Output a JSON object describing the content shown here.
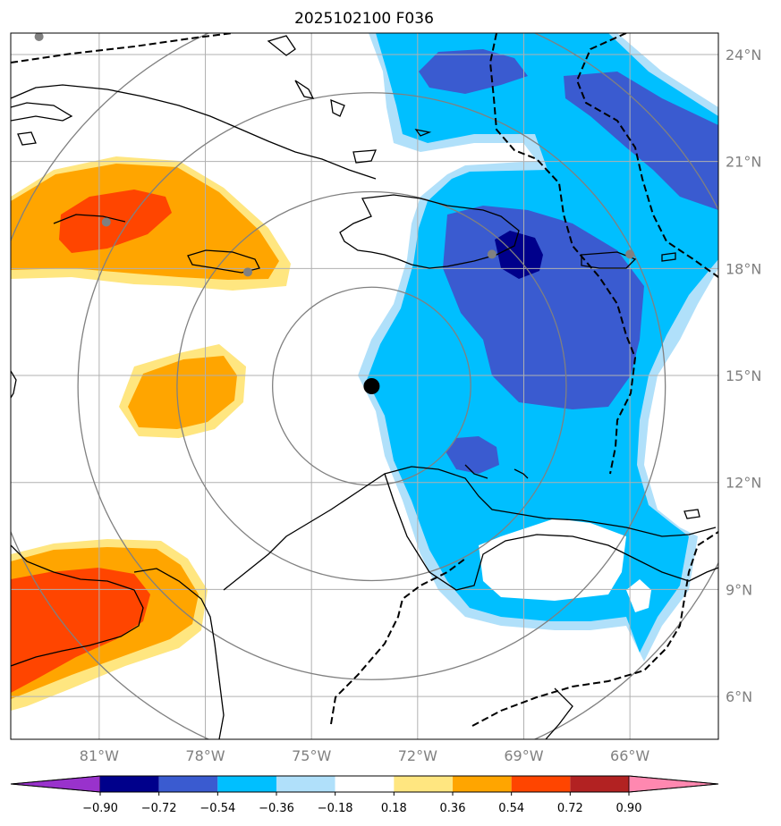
{
  "title": "2025102100 F036",
  "map": {
    "lon_range": [
      -83.5,
      -63.5
    ],
    "lat_range": [
      4.8,
      24.6
    ],
    "lat_ticks": [
      "24°N",
      "21°N",
      "18°N",
      "15°N",
      "12°N",
      "9°N",
      "6°N"
    ],
    "lat_tick_values": [
      24,
      21,
      18,
      15,
      12,
      9,
      6
    ],
    "lon_ticks": [
      "81°W",
      "78°W",
      "75°W",
      "72°W",
      "69°W",
      "66°W"
    ],
    "lon_tick_values": [
      -81,
      -78,
      -75,
      -72,
      -69,
      -66
    ],
    "grid": true,
    "center_marker": {
      "lon": -73.3,
      "lat": 14.7,
      "color": "#000000"
    },
    "station_points": [
      {
        "lon": -82.7,
        "lat": 24.5
      },
      {
        "lon": -80.8,
        "lat": 19.3
      },
      {
        "lon": -76.8,
        "lat": 17.9
      },
      {
        "lon": -69.9,
        "lat": 18.4
      },
      {
        "lon": -66.0,
        "lat": 18.4
      }
    ],
    "range_rings_deg": [
      2.8,
      5.5,
      8.3,
      11.0
    ]
  },
  "colorbar": {
    "labels": [
      "−0.90",
      "−0.72",
      "−0.54",
      "−0.36",
      "−0.18",
      "0.18",
      "0.36",
      "0.54",
      "0.72",
      "0.90"
    ],
    "bounds": [
      -0.9,
      -0.72,
      -0.54,
      -0.36,
      -0.18,
      0.18,
      0.36,
      0.54,
      0.72,
      0.9
    ],
    "colors": [
      "#9932cc",
      "#00008b",
      "#3a5bd0",
      "#00bfff",
      "#b0e0fa",
      "#ffffff",
      "#ffe680",
      "#ffa500",
      "#ff4500",
      "#b22222",
      "#ff88b0"
    ]
  },
  "field_colors": {
    "neg_strong": "#00008b",
    "neg_mid": "#3a5bd0",
    "neg_weak": "#00bfff",
    "neg_edge": "#b0e0fa",
    "pos_edge": "#ffe680",
    "pos_mid": "#ffa500",
    "pos_strong": "#ff4500"
  }
}
